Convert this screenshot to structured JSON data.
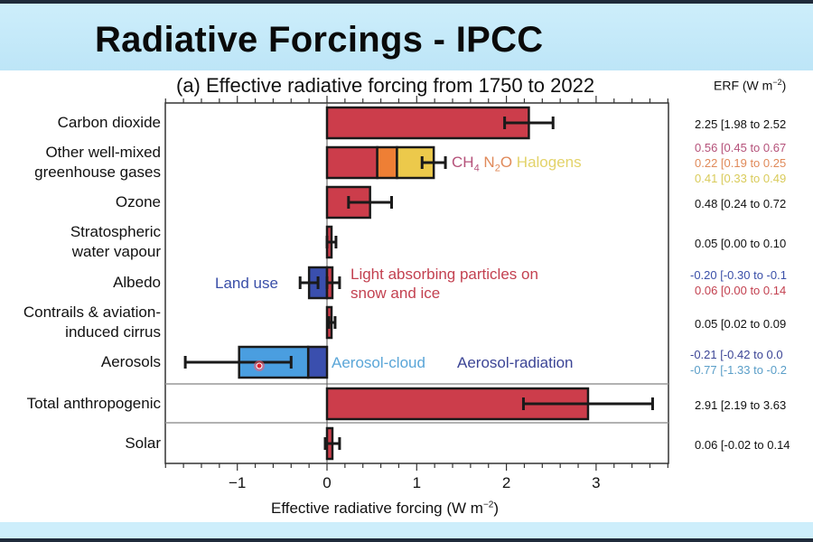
{
  "slide": {
    "title": "Radiative Forcings - IPCC",
    "colors": {
      "banner": "#c6ebf9",
      "stripe": "#1f2a3a"
    }
  },
  "chart_data": {
    "type": "bar",
    "orientation": "horizontal",
    "title": "(a) Effective radiative forcing from 1750 to 2022",
    "xlabel": "Effective radiative forcing (W m⁻²)",
    "xlabel_base": "Effective radiative forcing (W m",
    "xlabel_exp": "−2",
    "xlabel_close": ")",
    "erf_header_base": "ERF (W m",
    "erf_header_exp": "−2",
    "erf_header_close": ")",
    "xlim": [
      -1.8,
      3.8
    ],
    "xticks": [
      -1,
      0,
      1,
      2,
      3
    ],
    "xtick_labels": [
      "−1",
      "0",
      "1",
      "2",
      "3"
    ],
    "minor_tick_step": 0.2,
    "grid": false,
    "colors": {
      "warming": "#cc3d4b",
      "ch4": "#cc3d4b",
      "n2o": "#ee7f35",
      "halogens": "#ecc94b",
      "aerosol_cloud": "#4a9ee0",
      "aerosol_radiation": "#3a4fae",
      "land_use": "#3a4fae",
      "text_ch4": "#b5527a",
      "text_n2o": "#e08a5a",
      "text_halogens": "#e3d36a",
      "text_land": "#3a4fa8",
      "text_lap": "#c34150",
      "text_ac": "#5aa6d8",
      "text_ar": "#3c4596"
    },
    "rows": [
      {
        "label": [
          "Carbon dioxide"
        ],
        "segments": [
          {
            "name": "CO2",
            "from": 0,
            "to": 2.25,
            "color": "warming"
          }
        ],
        "errors": [
          {
            "center": 2.25,
            "low": 1.98,
            "high": 2.52
          }
        ],
        "erf_text": [
          {
            "text": "2.25 [1.98 to 2.52",
            "color": "#111111"
          }
        ]
      },
      {
        "label": [
          "Other well-mixed",
          "greenhouse gases"
        ],
        "segments": [
          {
            "name": "CH4",
            "from": 0,
            "to": 0.56,
            "color": "ch4"
          },
          {
            "name": "N2O",
            "from": 0.56,
            "to": 0.78,
            "color": "n2o"
          },
          {
            "name": "Halogens",
            "from": 0.78,
            "to": 1.19,
            "color": "halogens"
          }
        ],
        "errors": [
          {
            "center": 1.19,
            "low": 1.06,
            "high": 1.32
          }
        ],
        "erf_text": [
          {
            "text": "0.56 [0.45 to 0.67",
            "color": "#b5527a"
          },
          {
            "text": "0.22 [0.19 to 0.25",
            "color": "#e08a5a"
          },
          {
            "text": "0.41 [0.33 to 0.49",
            "color": "#d9cb5a"
          }
        ]
      },
      {
        "label": [
          "Ozone"
        ],
        "segments": [
          {
            "name": "Ozone",
            "from": 0,
            "to": 0.48,
            "color": "warming"
          }
        ],
        "errors": [
          {
            "center": 0.48,
            "low": 0.24,
            "high": 0.72
          }
        ],
        "erf_text": [
          {
            "text": "0.48 [0.24 to 0.72",
            "color": "#111111"
          }
        ]
      },
      {
        "label": [
          "Stratospheric",
          "water vapour"
        ],
        "segments": [
          {
            "name": "Stratospheric water vapour",
            "from": 0,
            "to": 0.05,
            "color": "warming"
          }
        ],
        "errors": [
          {
            "center": 0.05,
            "low": 0.0,
            "high": 0.1
          }
        ],
        "erf_text": [
          {
            "text": "0.05 [0.00 to 0.10",
            "color": "#111111"
          }
        ]
      },
      {
        "label": [
          "Albedo"
        ],
        "segments": [
          {
            "name": "Land use",
            "from": -0.2,
            "to": 0,
            "color": "land_use"
          },
          {
            "name": "Light absorbing particles",
            "from": 0,
            "to": 0.06,
            "color": "warming"
          }
        ],
        "errors": [
          {
            "center": -0.2,
            "low": -0.3,
            "high": -0.1
          },
          {
            "center": 0.06,
            "low": 0.0,
            "high": 0.14
          }
        ],
        "erf_text": [
          {
            "text": "-0.20 [-0.30 to -0.1",
            "color": "#3a4fa8"
          },
          {
            "text": "0.06 [0.00 to 0.14",
            "color": "#c34150"
          }
        ]
      },
      {
        "label": [
          "Contrails & aviation-",
          "induced cirrus"
        ],
        "segments": [
          {
            "name": "Contrails",
            "from": 0,
            "to": 0.05,
            "color": "warming"
          }
        ],
        "errors": [
          {
            "center": 0.05,
            "low": 0.02,
            "high": 0.09
          }
        ],
        "erf_text": [
          {
            "text": "0.05 [0.02 to 0.09",
            "color": "#111111"
          }
        ]
      },
      {
        "label": [
          "Aerosols"
        ],
        "segments": [
          {
            "name": "Aerosol-radiation",
            "from": -0.21,
            "to": 0,
            "color": "aerosol_radiation"
          },
          {
            "name": "Aerosol-cloud",
            "from": -0.98,
            "to": -0.21,
            "color": "aerosol_cloud"
          }
        ],
        "errors": [
          {
            "center": -0.98,
            "low": -1.58,
            "high": -0.4
          }
        ],
        "erf_text": [
          {
            "text": "-0.21 [-0.42 to 0.0",
            "color": "#3c4596"
          },
          {
            "text": "-0.77 [-1.33 to -0.2",
            "color": "#5a9ec8"
          }
        ]
      },
      {
        "label": [
          "Total anthropogenic"
        ],
        "segments": [
          {
            "name": "Total anthropogenic",
            "from": 0,
            "to": 2.91,
            "color": "warming"
          }
        ],
        "errors": [
          {
            "center": 2.91,
            "low": 2.19,
            "high": 3.63
          }
        ],
        "erf_text": [
          {
            "text": "2.91 [2.19 to 3.63",
            "color": "#111111"
          }
        ]
      },
      {
        "label": [
          "Solar"
        ],
        "segments": [
          {
            "name": "Solar",
            "from": 0,
            "to": 0.06,
            "color": "warming"
          }
        ],
        "errors": [
          {
            "center": 0.06,
            "low": -0.02,
            "high": 0.14
          }
        ],
        "erf_text": [
          {
            "text": "0.06 [-0.02 to 0.14",
            "color": "#111111"
          }
        ]
      }
    ],
    "annotations": {
      "ghg": {
        "ch4_base": "CH",
        "ch4_sub": "4",
        "n2o_base": "N",
        "n2o_sub": "2",
        "n2o_tail": "O",
        "halogens": "Halogens"
      },
      "land_use": "Land use",
      "lap_line1": "Light absorbing particles on",
      "lap_line2": "snow and ice",
      "aerosol_cloud": "Aerosol-cloud",
      "aerosol_radiation": "Aerosol-radiation"
    }
  }
}
